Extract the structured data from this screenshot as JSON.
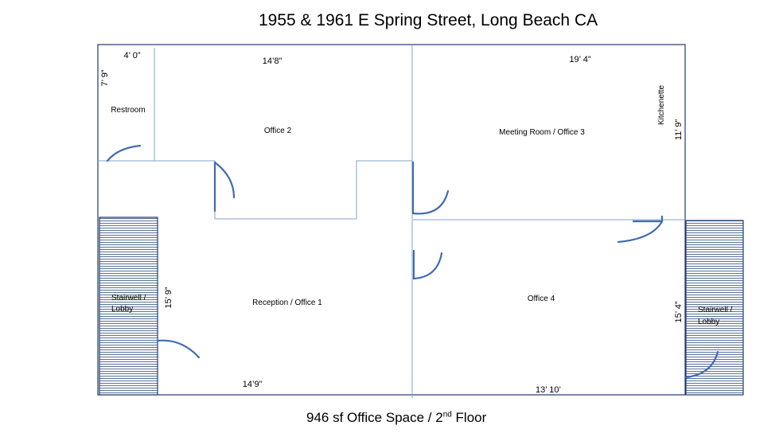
{
  "title": "1955 & 1961 E Spring Street, Long Beach CA",
  "footer": {
    "main": "946 sf  Office Space / 2",
    "sup": "nd",
    "tail": " Floor"
  },
  "rooms": {
    "restroom": "Restroom",
    "office2": "Office 2",
    "meeting": "Meeting Room / Office 3",
    "kitchenette": "Kitchenette",
    "reception": "Reception / Office 1",
    "office4": "Office 4",
    "stair_left_1": "Stairwell /",
    "stair_left_2": "Lobby",
    "stair_right_1": "Stairwell /",
    "stair_right_2": "Lobby"
  },
  "dimensions": {
    "restroom_width": "4’ 0”",
    "restroom_height": "7’ 9”",
    "office2_width": "14’8”",
    "meeting_width": "19’ 4”",
    "meeting_height": "11’ 9”",
    "reception_height": "15’ 9”",
    "reception_width": "14’9”",
    "office4_width": "13’ 10’",
    "office4_height": "15’ 4”"
  },
  "colors": {
    "wall": "#7fa3cf",
    "outer": "#1f3b6e",
    "door": "#3e6bb0",
    "stair_hatch": "#2f4f7f"
  }
}
